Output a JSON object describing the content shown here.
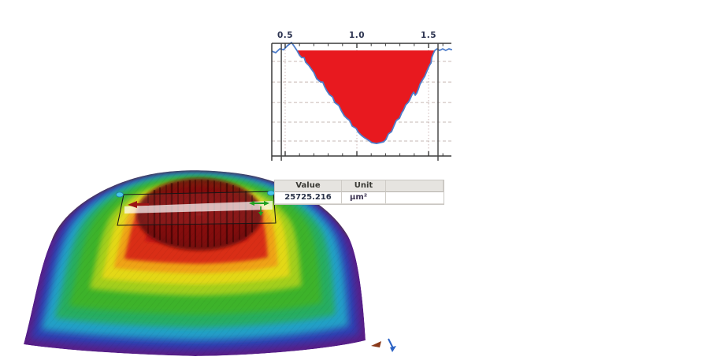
{
  "chart_data": {
    "type": "area",
    "title": "",
    "x_tick_labels": [
      "0.5",
      "1.0",
      "1.5"
    ],
    "x_tick_values": [
      0.5,
      1.0,
      1.5
    ],
    "minor_tick_step": 0.1,
    "xlim": [
      0.41,
      1.66
    ],
    "y_axis": "unlabeled (depth shown as normalized 0-1 of plot height below reference line)",
    "hgrid_depths": [
      0.104,
      0.299,
      0.493,
      0.679,
      0.858
    ],
    "grid": true,
    "cursors_x": [
      0.473,
      1.566
    ],
    "fill_between_x": [
      0.582,
      1.544
    ],
    "fill_color": "#e8191f",
    "line_color": "#4d7cc9",
    "profile_points": [
      [
        0.407,
        0.007
      ],
      [
        0.434,
        0.022
      ],
      [
        0.462,
        -0.015
      ],
      [
        0.489,
        -0.007
      ],
      [
        0.516,
        -0.045
      ],
      [
        0.544,
        -0.075
      ],
      [
        0.56,
        -0.045
      ],
      [
        0.582,
        0.0
      ],
      [
        0.6,
        0.045
      ],
      [
        0.615,
        0.067
      ],
      [
        0.632,
        0.067
      ],
      [
        0.643,
        0.112
      ],
      [
        0.665,
        0.142
      ],
      [
        0.68,
        0.172
      ],
      [
        0.7,
        0.209
      ],
      [
        0.72,
        0.269
      ],
      [
        0.747,
        0.299
      ],
      [
        0.762,
        0.299
      ],
      [
        0.775,
        0.343
      ],
      [
        0.79,
        0.381
      ],
      [
        0.808,
        0.418
      ],
      [
        0.83,
        0.44
      ],
      [
        0.846,
        0.493
      ],
      [
        0.874,
        0.522
      ],
      [
        0.89,
        0.567
      ],
      [
        0.912,
        0.619
      ],
      [
        0.929,
        0.642
      ],
      [
        0.95,
        0.664
      ],
      [
        0.967,
        0.716
      ],
      [
        0.995,
        0.739
      ],
      [
        1.011,
        0.776
      ],
      [
        1.033,
        0.806
      ],
      [
        1.055,
        0.828
      ],
      [
        1.082,
        0.851
      ],
      [
        1.104,
        0.873
      ],
      [
        1.137,
        0.881
      ],
      [
        1.165,
        0.873
      ],
      [
        1.187,
        0.866
      ],
      [
        1.203,
        0.843
      ],
      [
        1.22,
        0.791
      ],
      [
        1.242,
        0.769
      ],
      [
        1.258,
        0.716
      ],
      [
        1.275,
        0.664
      ],
      [
        1.297,
        0.642
      ],
      [
        1.313,
        0.59
      ],
      [
        1.324,
        0.567
      ],
      [
        1.341,
        0.515
      ],
      [
        1.357,
        0.493
      ],
      [
        1.368,
        0.47
      ],
      [
        1.385,
        0.418
      ],
      [
        1.396,
        0.396
      ],
      [
        1.407,
        0.425
      ],
      [
        1.418,
        0.403
      ],
      [
        1.429,
        0.366
      ],
      [
        1.44,
        0.321
      ],
      [
        1.462,
        0.269
      ],
      [
        1.473,
        0.246
      ],
      [
        1.489,
        0.194
      ],
      [
        1.506,
        0.142
      ],
      [
        1.517,
        0.119
      ],
      [
        1.522,
        0.067
      ],
      [
        1.533,
        0.03
      ],
      [
        1.544,
        0.0
      ],
      [
        1.56,
        -0.015
      ],
      [
        1.577,
        0.0
      ],
      [
        1.599,
        -0.015
      ],
      [
        1.62,
        0.0
      ],
      [
        1.642,
        -0.015
      ],
      [
        1.664,
        -0.007
      ]
    ]
  },
  "results_table": {
    "columns": [
      "Value",
      "Unit"
    ],
    "rows": [
      {
        "value": "25725.216",
        "unit": "µm²"
      }
    ]
  },
  "surface_view": {
    "colormap": [
      "#5a1d86",
      "#2f3eb2",
      "#22a0c8",
      "#27ad62",
      "#3eb32a",
      "#a3cf1e",
      "#e3d816",
      "#efa313",
      "#d92f17",
      "#c01616"
    ],
    "crater_color": "#7a0c0c",
    "crater_stripe_color": "rgba(40,0,0,0.55)",
    "plane_outline_color": "#161616",
    "band_color": "#ffffff",
    "left_marker_color": "#9c1414",
    "right_marker_color": "#1fa01f",
    "handle_color": "#49c6e8",
    "gizmo_colors": [
      "#8a3a1a",
      "#2b62c4"
    ]
  }
}
